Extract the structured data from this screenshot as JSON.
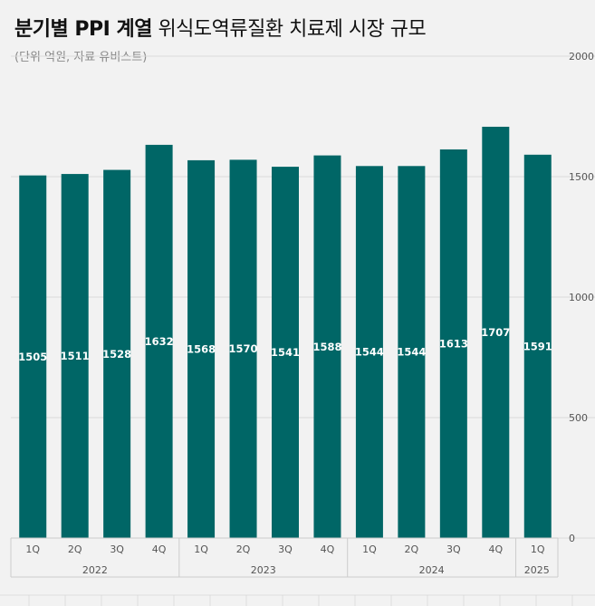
{
  "title": {
    "bold_part": "분기별 PPI 계열",
    "rest": " 위식도역류질환 치료제 시장 규모"
  },
  "subtitle": "(단위 억원, 자료 유비스트)",
  "colors": {
    "bar": "#006666",
    "background": "#f2f2f2",
    "grid": "#d9d9d9",
    "label": "#ffffff",
    "axis_text": "#555555"
  },
  "chart_data": {
    "type": "bar",
    "title": "분기별 PPI 계열 위식도역류질환 치료제 시장 규모",
    "subtitle": "(단위 억원, 자료 유비스트)",
    "categories": [
      "1Q",
      "2Q",
      "3Q",
      "4Q",
      "1Q",
      "2Q",
      "3Q",
      "4Q",
      "1Q",
      "2Q",
      "3Q",
      "4Q",
      "1Q"
    ],
    "groups": [
      {
        "label": "2022",
        "count": 4
      },
      {
        "label": "2023",
        "count": 4
      },
      {
        "label": "2024",
        "count": 4
      },
      {
        "label": "2025",
        "count": 1
      }
    ],
    "values": [
      1505,
      1511,
      1528,
      1632,
      1568,
      1570,
      1541,
      1588,
      1544,
      1544,
      1613,
      1707,
      1591
    ],
    "ylim": [
      0,
      2000
    ],
    "yticks": [
      0,
      500,
      1000,
      1500,
      2000
    ],
    "y_axis_side": "right",
    "data_labels": true,
    "grid": true,
    "legend": "none"
  }
}
